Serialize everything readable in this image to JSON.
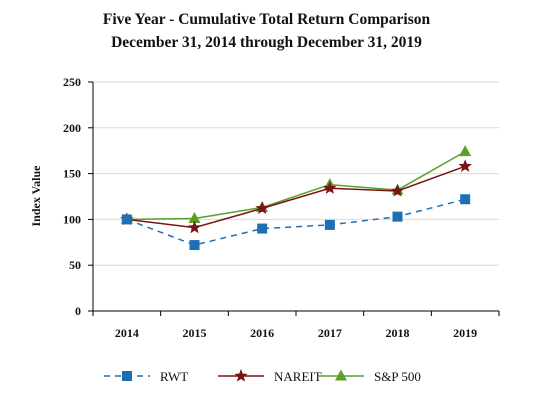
{
  "chart_data": {
    "type": "line",
    "title": "Five Year - Cumulative Total Return Comparison",
    "subtitle": "December 31, 2014 through December 31, 2019",
    "ylabel": "Index Value",
    "xlabel": "",
    "x": [
      "2014",
      "2015",
      "2016",
      "2017",
      "2018",
      "2019"
    ],
    "ylim": [
      0,
      250
    ],
    "yticks": [
      "0",
      "50",
      "100",
      "150",
      "200",
      "250"
    ],
    "grid": true,
    "legend_position": "bottom",
    "series": [
      {
        "name": "RWT",
        "values": [
          100,
          72,
          90,
          94,
          103,
          122
        ],
        "color": "#1f6fb5",
        "dashed": true,
        "marker": "square"
      },
      {
        "name": "NAREIT",
        "values": [
          100,
          91,
          112,
          134,
          131,
          158
        ],
        "color": "#7a1414",
        "dashed": false,
        "marker": "star"
      },
      {
        "name": "S&P 500",
        "values": [
          100,
          101,
          113,
          138,
          132,
          174
        ],
        "color": "#5aa028",
        "dashed": false,
        "marker": "triangle"
      }
    ]
  }
}
